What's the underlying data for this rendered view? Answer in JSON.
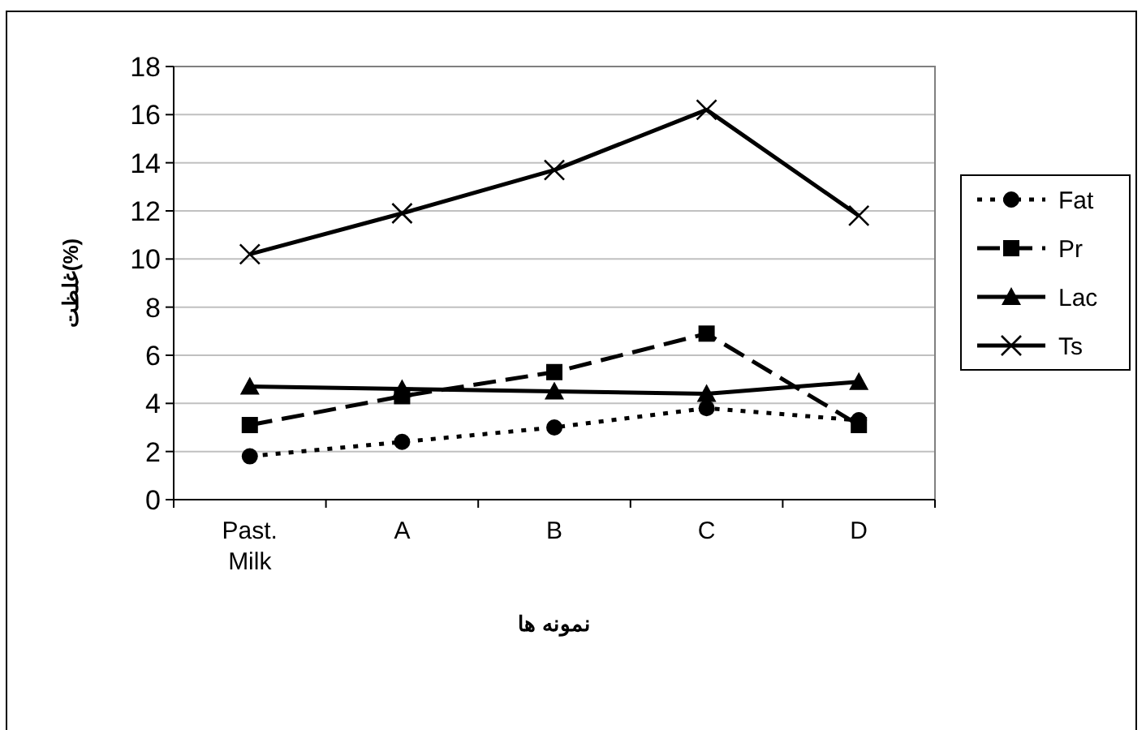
{
  "chart_data": {
    "type": "line",
    "xlabel": "نمونه ها",
    "ylabel": "غلظت(%)",
    "categories": [
      "Past. Milk",
      "A",
      "B",
      "C",
      "D"
    ],
    "ylim": [
      0,
      18
    ],
    "yticks": [
      0,
      2,
      4,
      6,
      8,
      10,
      12,
      14,
      16,
      18
    ],
    "grid": "y",
    "legend": "right",
    "series": [
      {
        "name": "Fat",
        "color": "#000000",
        "marker": "circle",
        "line_style": "dotted",
        "values": [
          1.8,
          2.4,
          3.0,
          3.8,
          3.3
        ]
      },
      {
        "name": "Pr",
        "color": "#000000",
        "marker": "square",
        "line_style": "dashed",
        "values": [
          3.1,
          4.3,
          5.3,
          6.9,
          3.1
        ]
      },
      {
        "name": "Lac",
        "color": "#000000",
        "marker": "triangle",
        "line_style": "solid",
        "values": [
          4.7,
          4.6,
          4.5,
          4.4,
          4.9
        ]
      },
      {
        "name": "Ts",
        "color": "#000000",
        "marker": "cross",
        "line_style": "solid",
        "values": [
          10.2,
          11.9,
          13.7,
          16.2,
          11.8
        ]
      }
    ]
  }
}
